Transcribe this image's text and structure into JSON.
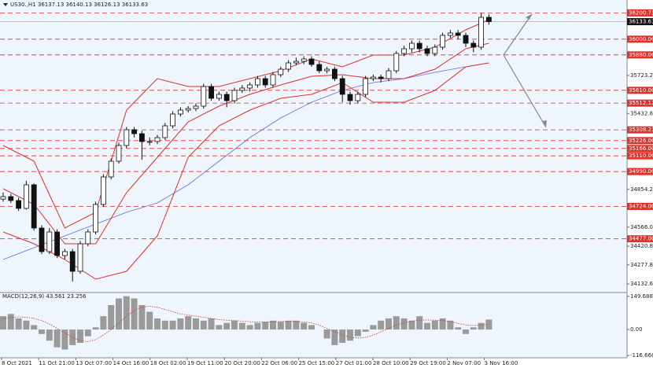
{
  "chart_data": {
    "type": "candlestick",
    "header": "US30.,H1  36137.13 36140.13 36126.13 36133.63",
    "candles": [
      [
        34780,
        34830,
        34760,
        34799
      ],
      [
        34799,
        34820,
        34750,
        34769
      ],
      [
        34769,
        34790,
        34690,
        34709
      ],
      [
        34709,
        34920,
        34700,
        34889
      ],
      [
        34889,
        34900,
        34540,
        34559
      ],
      [
        34559,
        34580,
        34360,
        34379
      ],
      [
        34379,
        34560,
        34360,
        34529
      ],
      [
        34529,
        34550,
        34330,
        34349
      ],
      [
        34349,
        34400,
        34320,
        34379
      ],
      [
        34379,
        34400,
        34150,
        34229
      ],
      [
        34229,
        34460,
        34210,
        34439
      ],
      [
        34439,
        34550,
        34420,
        34529
      ],
      [
        34529,
        34760,
        34510,
        34739
      ],
      [
        34739,
        34970,
        34720,
        34949
      ],
      [
        34949,
        35090,
        34930,
        35069
      ],
      [
        35069,
        35210,
        35050,
        35189
      ],
      [
        35189,
        35330,
        35170,
        35309
      ],
      [
        35309,
        35330,
        35250,
        35279
      ],
      [
        35279,
        35300,
        35080,
        35219
      ],
      [
        35219,
        35250,
        35190,
        35219
      ],
      [
        35219,
        35270,
        35200,
        35249
      ],
      [
        35249,
        35360,
        35230,
        35339
      ],
      [
        35339,
        35450,
        35320,
        35429
      ],
      [
        35429,
        35480,
        35410,
        35459
      ],
      [
        35459,
        35490,
        35440,
        35471
      ],
      [
        35471,
        35510,
        35450,
        35489
      ],
      [
        35489,
        35660,
        35470,
        35639
      ],
      [
        35639,
        35660,
        35530,
        35549
      ],
      [
        35549,
        35600,
        35530,
        35579
      ],
      [
        35579,
        35600,
        35480,
        35531
      ],
      [
        35531,
        35630,
        35510,
        35609
      ],
      [
        35609,
        35650,
        35590,
        35627
      ],
      [
        35627,
        35670,
        35600,
        35651
      ],
      [
        35651,
        35720,
        35630,
        35699
      ],
      [
        35699,
        35720,
        35630,
        35651
      ],
      [
        35651,
        35750,
        35630,
        35729
      ],
      [
        35729,
        35790,
        35710,
        35771
      ],
      [
        35771,
        35840,
        35750,
        35819
      ],
      [
        35819,
        35860,
        35800,
        35831
      ],
      [
        35831,
        35870,
        35810,
        35849
      ],
      [
        35849,
        35870,
        35790,
        35807
      ],
      [
        35807,
        35830,
        35740,
        35759
      ],
      [
        35759,
        35790,
        35740,
        35771
      ],
      [
        35771,
        35790,
        35680,
        35699
      ],
      [
        35699,
        35720,
        35520,
        35579
      ],
      [
        35579,
        35600,
        35500,
        35531
      ],
      [
        35531,
        35600,
        35510,
        35579
      ],
      [
        35579,
        35720,
        35560,
        35699
      ],
      [
        35699,
        35730,
        35680,
        35711
      ],
      [
        35711,
        35730,
        35670,
        35699
      ],
      [
        35699,
        35780,
        35680,
        35759
      ],
      [
        35759,
        35910,
        35740,
        35891
      ],
      [
        35891,
        35950,
        35870,
        35927
      ],
      [
        35927,
        35990,
        35900,
        35969
      ],
      [
        35969,
        35990,
        35900,
        35927
      ],
      [
        35927,
        35950,
        35870,
        35891
      ],
      [
        35891,
        35960,
        35870,
        35939
      ],
      [
        35939,
        36050,
        35920,
        36029
      ],
      [
        36029,
        36070,
        36010,
        36047
      ],
      [
        36047,
        36070,
        36000,
        36029
      ],
      [
        36029,
        36050,
        35940,
        35969
      ],
      [
        35969,
        35990,
        35900,
        35939
      ],
      [
        35939,
        36200,
        35920,
        36167
      ],
      [
        36167,
        36190,
        36110,
        36133.63
      ]
    ],
    "indicator_index": [
      0,
      4,
      8,
      12,
      16,
      20,
      24,
      28,
      32,
      36,
      40,
      44,
      48,
      52,
      56,
      60,
      63
    ],
    "bollinger_upper": [
      35189,
      35069,
      34559,
      34679,
      35459,
      35699,
      35639,
      35639,
      35699,
      35759,
      35849,
      35789,
      35879,
      35879,
      35939,
      36071,
      36149
    ],
    "bollinger_middle": [
      34859,
      34739,
      34439,
      34439,
      34829,
      35099,
      35369,
      35489,
      35579,
      35651,
      35717,
      35729,
      35699,
      35699,
      35771,
      35927,
      35969
    ],
    "bollinger_lower": [
      34529,
      34439,
      34319,
      34169,
      34229,
      34499,
      35099,
      35339,
      35459,
      35549,
      35579,
      35669,
      35519,
      35519,
      35609,
      35789,
      35819
    ],
    "moving_average": [
      34319,
      34409,
      34499,
      34589,
      34679,
      34751,
      34889,
      35069,
      35249,
      35399,
      35519,
      35609,
      35669,
      35699,
      35747,
      35789,
      35819
    ],
    "ylim": [
      34079,
      36239
    ],
    "yticks": [
      {
        "value": 35723.2,
        "label": "35723.20"
      },
      {
        "value": 35432.8,
        "label": "35432.80"
      },
      {
        "value": 34854.2,
        "label": "34854.20"
      },
      {
        "value": 34566,
        "label": "34566.00"
      },
      {
        "value": 34420.8,
        "label": "34420.80"
      },
      {
        "value": 34277.8,
        "label": "34277.80"
      },
      {
        "value": 34132.6,
        "label": "34132.60"
      }
    ],
    "levels": [
      36200.73,
      {
        "value": 36000,
        "label": "36000.00"
      },
      {
        "value": 35880,
        "label": "35880.00"
      },
      {
        "value": 35610,
        "label": "35610.00"
      },
      35512.12,
      35308.23,
      {
        "value": 35226,
        "label": "35226.00"
      },
      {
        "value": 35166,
        "label": "35166.00"
      },
      {
        "value": 35110,
        "label": "35110.00"
      },
      {
        "value": 34990,
        "label": "34990.00"
      },
      {
        "value": 34724,
        "label": "34724.00"
      },
      {
        "value": 34477,
        "label": "34477.00"
      }
    ],
    "current_price": 36133.63,
    "level_color": "#e0302a",
    "x_labels": [
      "8 Oct 2021",
      "11 Oct 21:00",
      "13 Oct 07:00",
      "14 Oct 16:00",
      "18 Oct 02:00",
      "19 Oct 11:00",
      "20 Oct 20:00",
      "22 Oct 06:00",
      "25 Oct 15:00",
      "27 Oct 01:00",
      "28 Oct 10:00",
      "29 Oct 19:00",
      "2 Nov 07:00",
      "3 Nov 16:00"
    ],
    "macd": {
      "label": "MACD(12,26,9) 43.561 23.256",
      "histogram": [
        60,
        70,
        50,
        40,
        20,
        -20,
        -50,
        -80,
        -90,
        -70,
        -60,
        -30,
        10,
        60,
        110,
        140,
        150,
        140,
        110,
        80,
        50,
        40,
        40,
        50,
        60,
        50,
        40,
        50,
        20,
        30,
        40,
        30,
        20,
        30,
        35,
        40,
        35,
        40,
        40,
        30,
        20,
        0,
        -40,
        -70,
        -60,
        -50,
        -30,
        -10,
        20,
        40,
        50,
        60,
        50,
        40,
        60,
        30,
        40,
        50,
        40,
        10,
        -20,
        10,
        30,
        45
      ],
      "signal": [
        50,
        55,
        57,
        55,
        50,
        40,
        25,
        5,
        -15,
        -35,
        -50,
        -55,
        -45,
        -25,
        0,
        30,
        60,
        85,
        100,
        105,
        100,
        90,
        80,
        70,
        65,
        60,
        55,
        50,
        45,
        42,
        40,
        38,
        35,
        34,
        34,
        35,
        36,
        37,
        36,
        34,
        30,
        20,
        5,
        -10,
        -25,
        -35,
        -38,
        -35,
        -25,
        -10,
        5,
        20,
        30,
        38,
        42,
        43,
        42,
        40,
        35,
        28,
        20,
        18,
        20,
        24
      ],
      "ylim": [
        -127,
        163
      ],
      "yticks": [
        149.688,
        {
          "value": 0,
          "label": "0.00"
        },
        -116.668
      ]
    }
  }
}
